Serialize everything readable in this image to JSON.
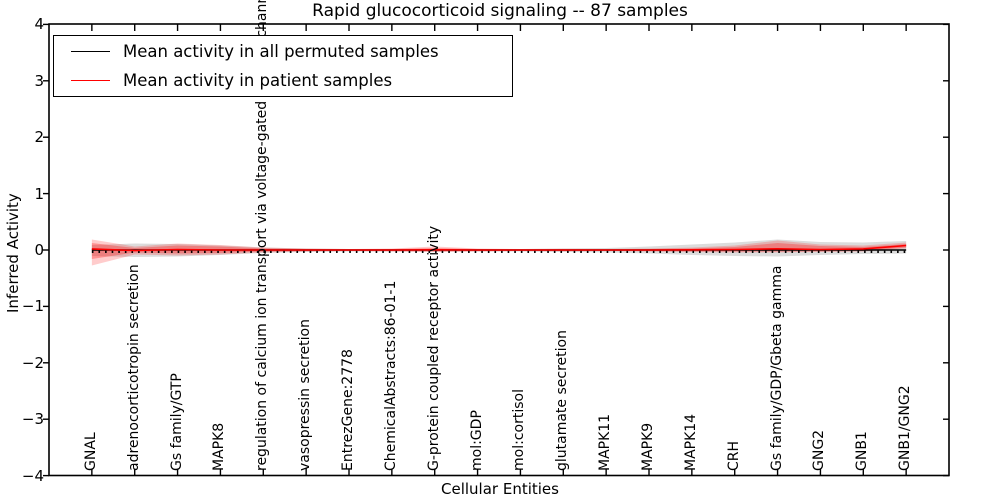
{
  "title": "Rapid glucocorticoid signaling -- 87 samples",
  "axes": {
    "xlabel": "Cellular Entities",
    "ylabel": "Inferred Activity",
    "ytick_labels": [
      "4",
      "3",
      "2",
      "1",
      "0",
      "−1",
      "−2",
      "−3",
      "−4"
    ]
  },
  "legend": {
    "items": [
      {
        "label": "Mean activity in all permuted samples",
        "color": "#000000"
      },
      {
        "label": "Mean activity in patient samples",
        "color": "#ff0000"
      }
    ]
  },
  "colors": {
    "permuted_line": "#000000",
    "patient_line": "#ff0000",
    "permuted_band": "#808080",
    "patient_band": "#ff0000",
    "spine": "#000000"
  },
  "chart_data": {
    "type": "line",
    "title": "Rapid glucocorticoid signaling -- 87 samples",
    "xlabel": "Cellular Entities",
    "ylabel": "Inferred Activity",
    "ylim": [
      -4,
      4
    ],
    "yticks": [
      4,
      3,
      2,
      1,
      0,
      -1,
      -2,
      -3,
      -4
    ],
    "grid": false,
    "legend_position": "upper left",
    "categories": [
      "GNAL",
      "adrenocorticotropin secretion",
      "Gs family/GTP",
      "MAPK8",
      "regulation of calcium ion transport via voltage-gated calcium channel",
      "vasopressin secretion",
      "EntrezGene:2778",
      "ChemicalAbstracts:86-01-1",
      "G-protein coupled receptor activity",
      "mol:GDP",
      "mol:cortisol",
      "glutamate secretion",
      "MAPK11",
      "MAPK9",
      "MAPK14",
      "CRH",
      "Gs family/GDP/Gbeta gamma",
      "GNG2",
      "GNB1",
      "GNB1/GNG2"
    ],
    "series": [
      {
        "name": "Mean activity in all permuted samples",
        "color": "#000000",
        "style": "solid-with-dotted-markers",
        "values": [
          0,
          0,
          0,
          0,
          0,
          0,
          0,
          0,
          0,
          0,
          0,
          0,
          0,
          0,
          0,
          0,
          0,
          0,
          0,
          0
        ]
      },
      {
        "name": "Mean activity in patient samples",
        "color": "#ff0000",
        "style": "solid",
        "values": [
          0.018,
          -0.009,
          0.009,
          0,
          0,
          0,
          0,
          0,
          0.004,
          0,
          0,
          0,
          0,
          0,
          0.004,
          0.009,
          0.021,
          0.009,
          0.018,
          0.08
        ]
      }
    ],
    "bands": [
      {
        "name": "permuted samples range",
        "color": "#808080",
        "opacity": 0.28,
        "upper": [
          0.089,
          0.115,
          0.106,
          0.08,
          0.044,
          0.027,
          0.018,
          0.018,
          0.018,
          0.018,
          0.018,
          0.027,
          0.035,
          0.062,
          0.098,
          0.133,
          0.186,
          0.142,
          0.133,
          0.16
        ],
        "lower": [
          -0.106,
          -0.124,
          -0.115,
          -0.089,
          -0.053,
          -0.035,
          -0.027,
          -0.027,
          -0.027,
          -0.027,
          -0.027,
          -0.035,
          -0.044,
          -0.062,
          -0.089,
          -0.106,
          -0.115,
          -0.089,
          -0.071,
          -0.062
        ]
      },
      {
        "name": "patient samples range (outer)",
        "color": "#ff0000",
        "opacity": 0.2,
        "upper": [
          0.186,
          0.062,
          0.115,
          0.089,
          0.044,
          0.027,
          0.018,
          0.027,
          0.062,
          0.027,
          0.018,
          0.023,
          0.018,
          0.027,
          0.044,
          0.08,
          0.168,
          0.098,
          0.08,
          0.133
        ],
        "lower": [
          -0.275,
          -0.08,
          -0.098,
          -0.08,
          -0.044,
          -0.027,
          -0.018,
          -0.027,
          -0.035,
          -0.027,
          -0.018,
          -0.023,
          -0.018,
          -0.027,
          -0.035,
          -0.044,
          -0.044,
          -0.035,
          -0.027,
          0.027
        ]
      },
      {
        "name": "patient samples range (inner)",
        "color": "#ff0000",
        "opacity": 0.28,
        "upper": [
          0.124,
          0.035,
          0.08,
          0.062,
          0.027,
          0.018,
          0.012,
          0.018,
          0.035,
          0.018,
          0.012,
          0.015,
          0.012,
          0.018,
          0.027,
          0.053,
          0.124,
          0.071,
          0.053,
          0.106
        ],
        "lower": [
          -0.16,
          -0.044,
          -0.062,
          -0.053,
          -0.027,
          -0.018,
          -0.012,
          -0.018,
          -0.023,
          -0.018,
          -0.012,
          -0.015,
          -0.012,
          -0.018,
          -0.023,
          -0.027,
          -0.027,
          -0.023,
          -0.018,
          0.044
        ]
      }
    ],
    "permuted_dotted_offset": -0.033
  }
}
